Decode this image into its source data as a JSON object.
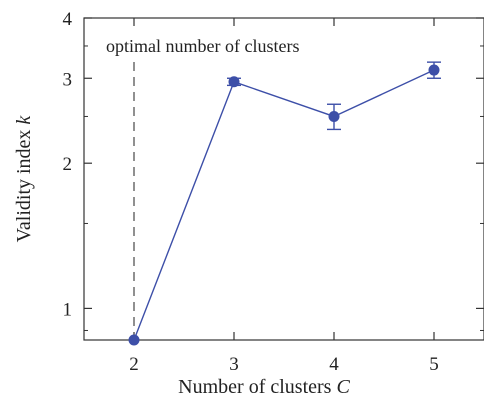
{
  "chart_data": {
    "type": "line",
    "scale": "log",
    "xlabel": {
      "text": "Number of clusters ",
      "var": "C"
    },
    "ylabel": {
      "text": "Validity index ",
      "var": "k"
    },
    "x": [
      2,
      3,
      4,
      5
    ],
    "y": [
      0.86,
      2.95,
      2.5,
      3.12
    ],
    "yerr": [
      0,
      0.05,
      0.15,
      0.12
    ],
    "xlim": [
      1.5,
      5.5
    ],
    "ylim": [
      0.86,
      4
    ],
    "xticks": [
      2,
      3,
      4,
      5
    ],
    "yticks": [
      1,
      2,
      3,
      4
    ],
    "annotation": {
      "text": "optimal number of clusters",
      "x": 2
    },
    "colors": {
      "series": "#3d4fa8",
      "axis": "#333333",
      "dashed": "#555555"
    }
  }
}
